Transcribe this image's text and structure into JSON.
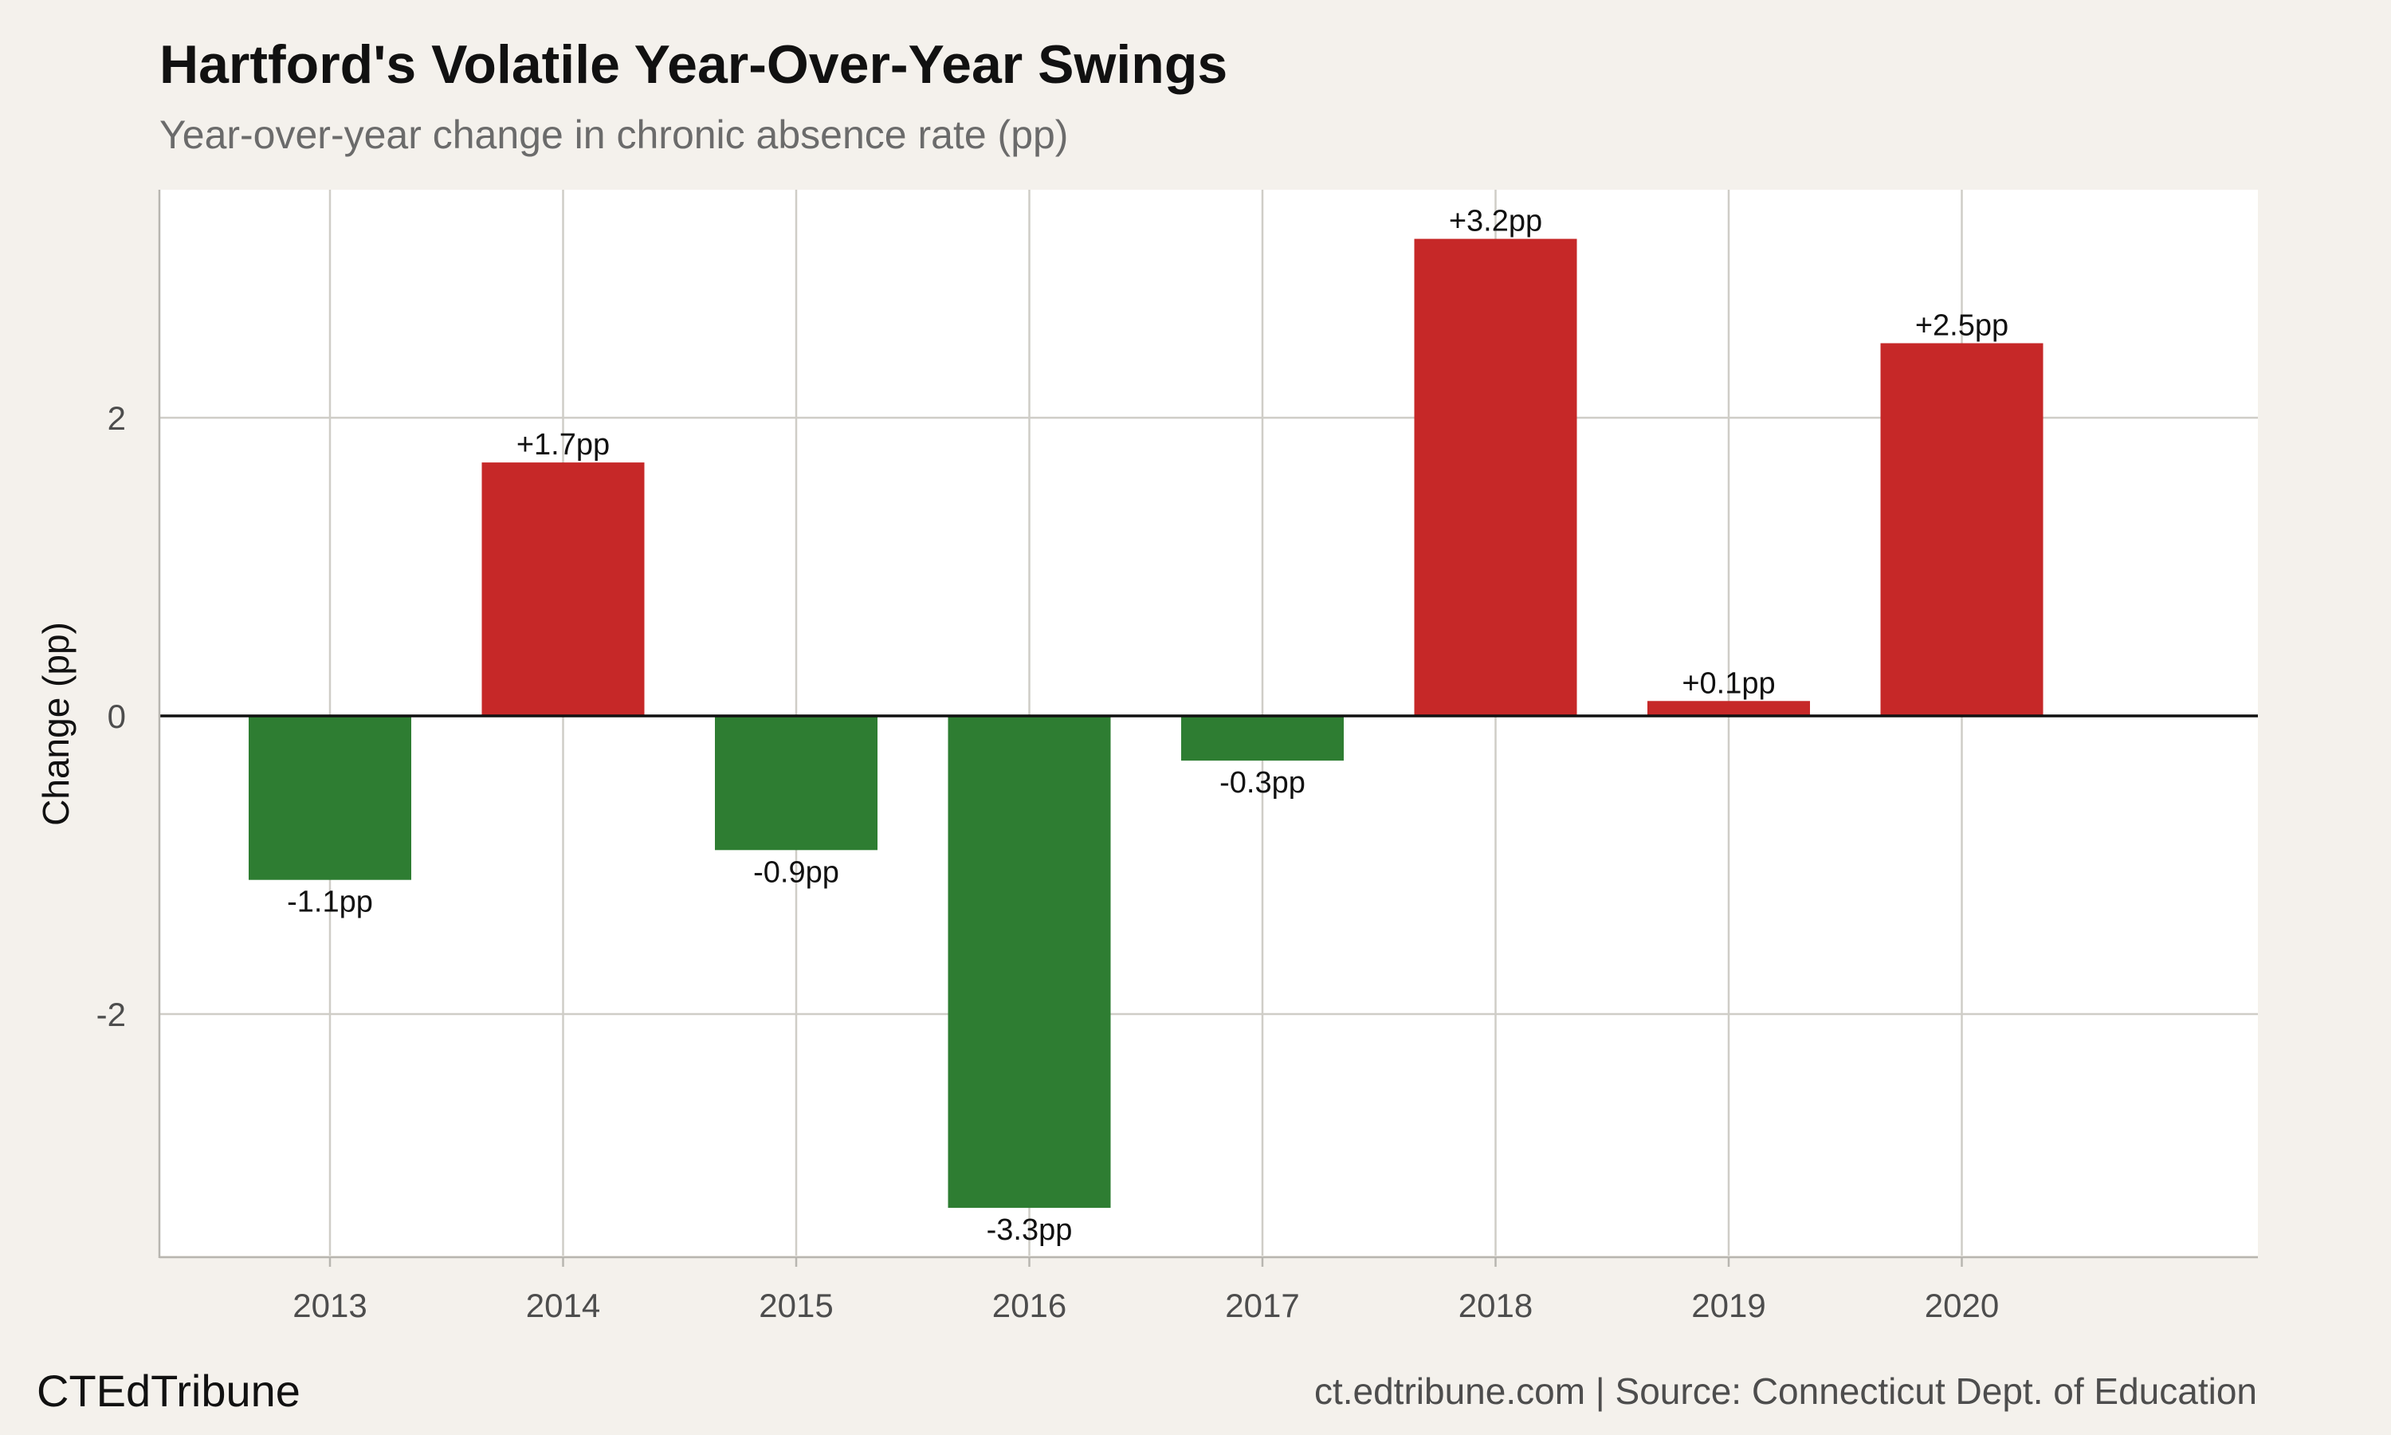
{
  "title": "Hartford's Volatile Year-Over-Year Swings",
  "subtitle": "Year-over-year change in chronic absence rate (pp)",
  "footer": {
    "brand": "CTEdTribune",
    "source": "ct.edtribune.com | Source: Connecticut Dept. of Education"
  },
  "colors": {
    "increase": "#c62828",
    "decrease": "#2e7d32",
    "panel": "#ffffff",
    "background": "#f4f1ec"
  },
  "chart_data": {
    "type": "bar",
    "title": "Hartford's Volatile Year-Over-Year Swings",
    "subtitle": "Year-over-year change in chronic absence rate (pp)",
    "xlabel": "",
    "ylabel": "Change (pp)",
    "categories": [
      "2013",
      "2014",
      "2015",
      "2016",
      "2017",
      "2018",
      "2019",
      "2020"
    ],
    "values": [
      -1.1,
      1.7,
      -0.9,
      -3.3,
      -0.3,
      3.2,
      0.1,
      2.5
    ],
    "data_labels": [
      "-1.1pp",
      "+1.7pp",
      "-0.9pp",
      "-3.3pp",
      "-0.3pp",
      "+3.2pp",
      "+0.1pp",
      "+2.5pp"
    ],
    "yticks": [
      -2,
      0,
      2
    ],
    "ytick_labels": [
      "-2",
      "0",
      "2"
    ],
    "ylim": [
      -3.6,
      3.55
    ],
    "grid": true,
    "legend": "none"
  }
}
